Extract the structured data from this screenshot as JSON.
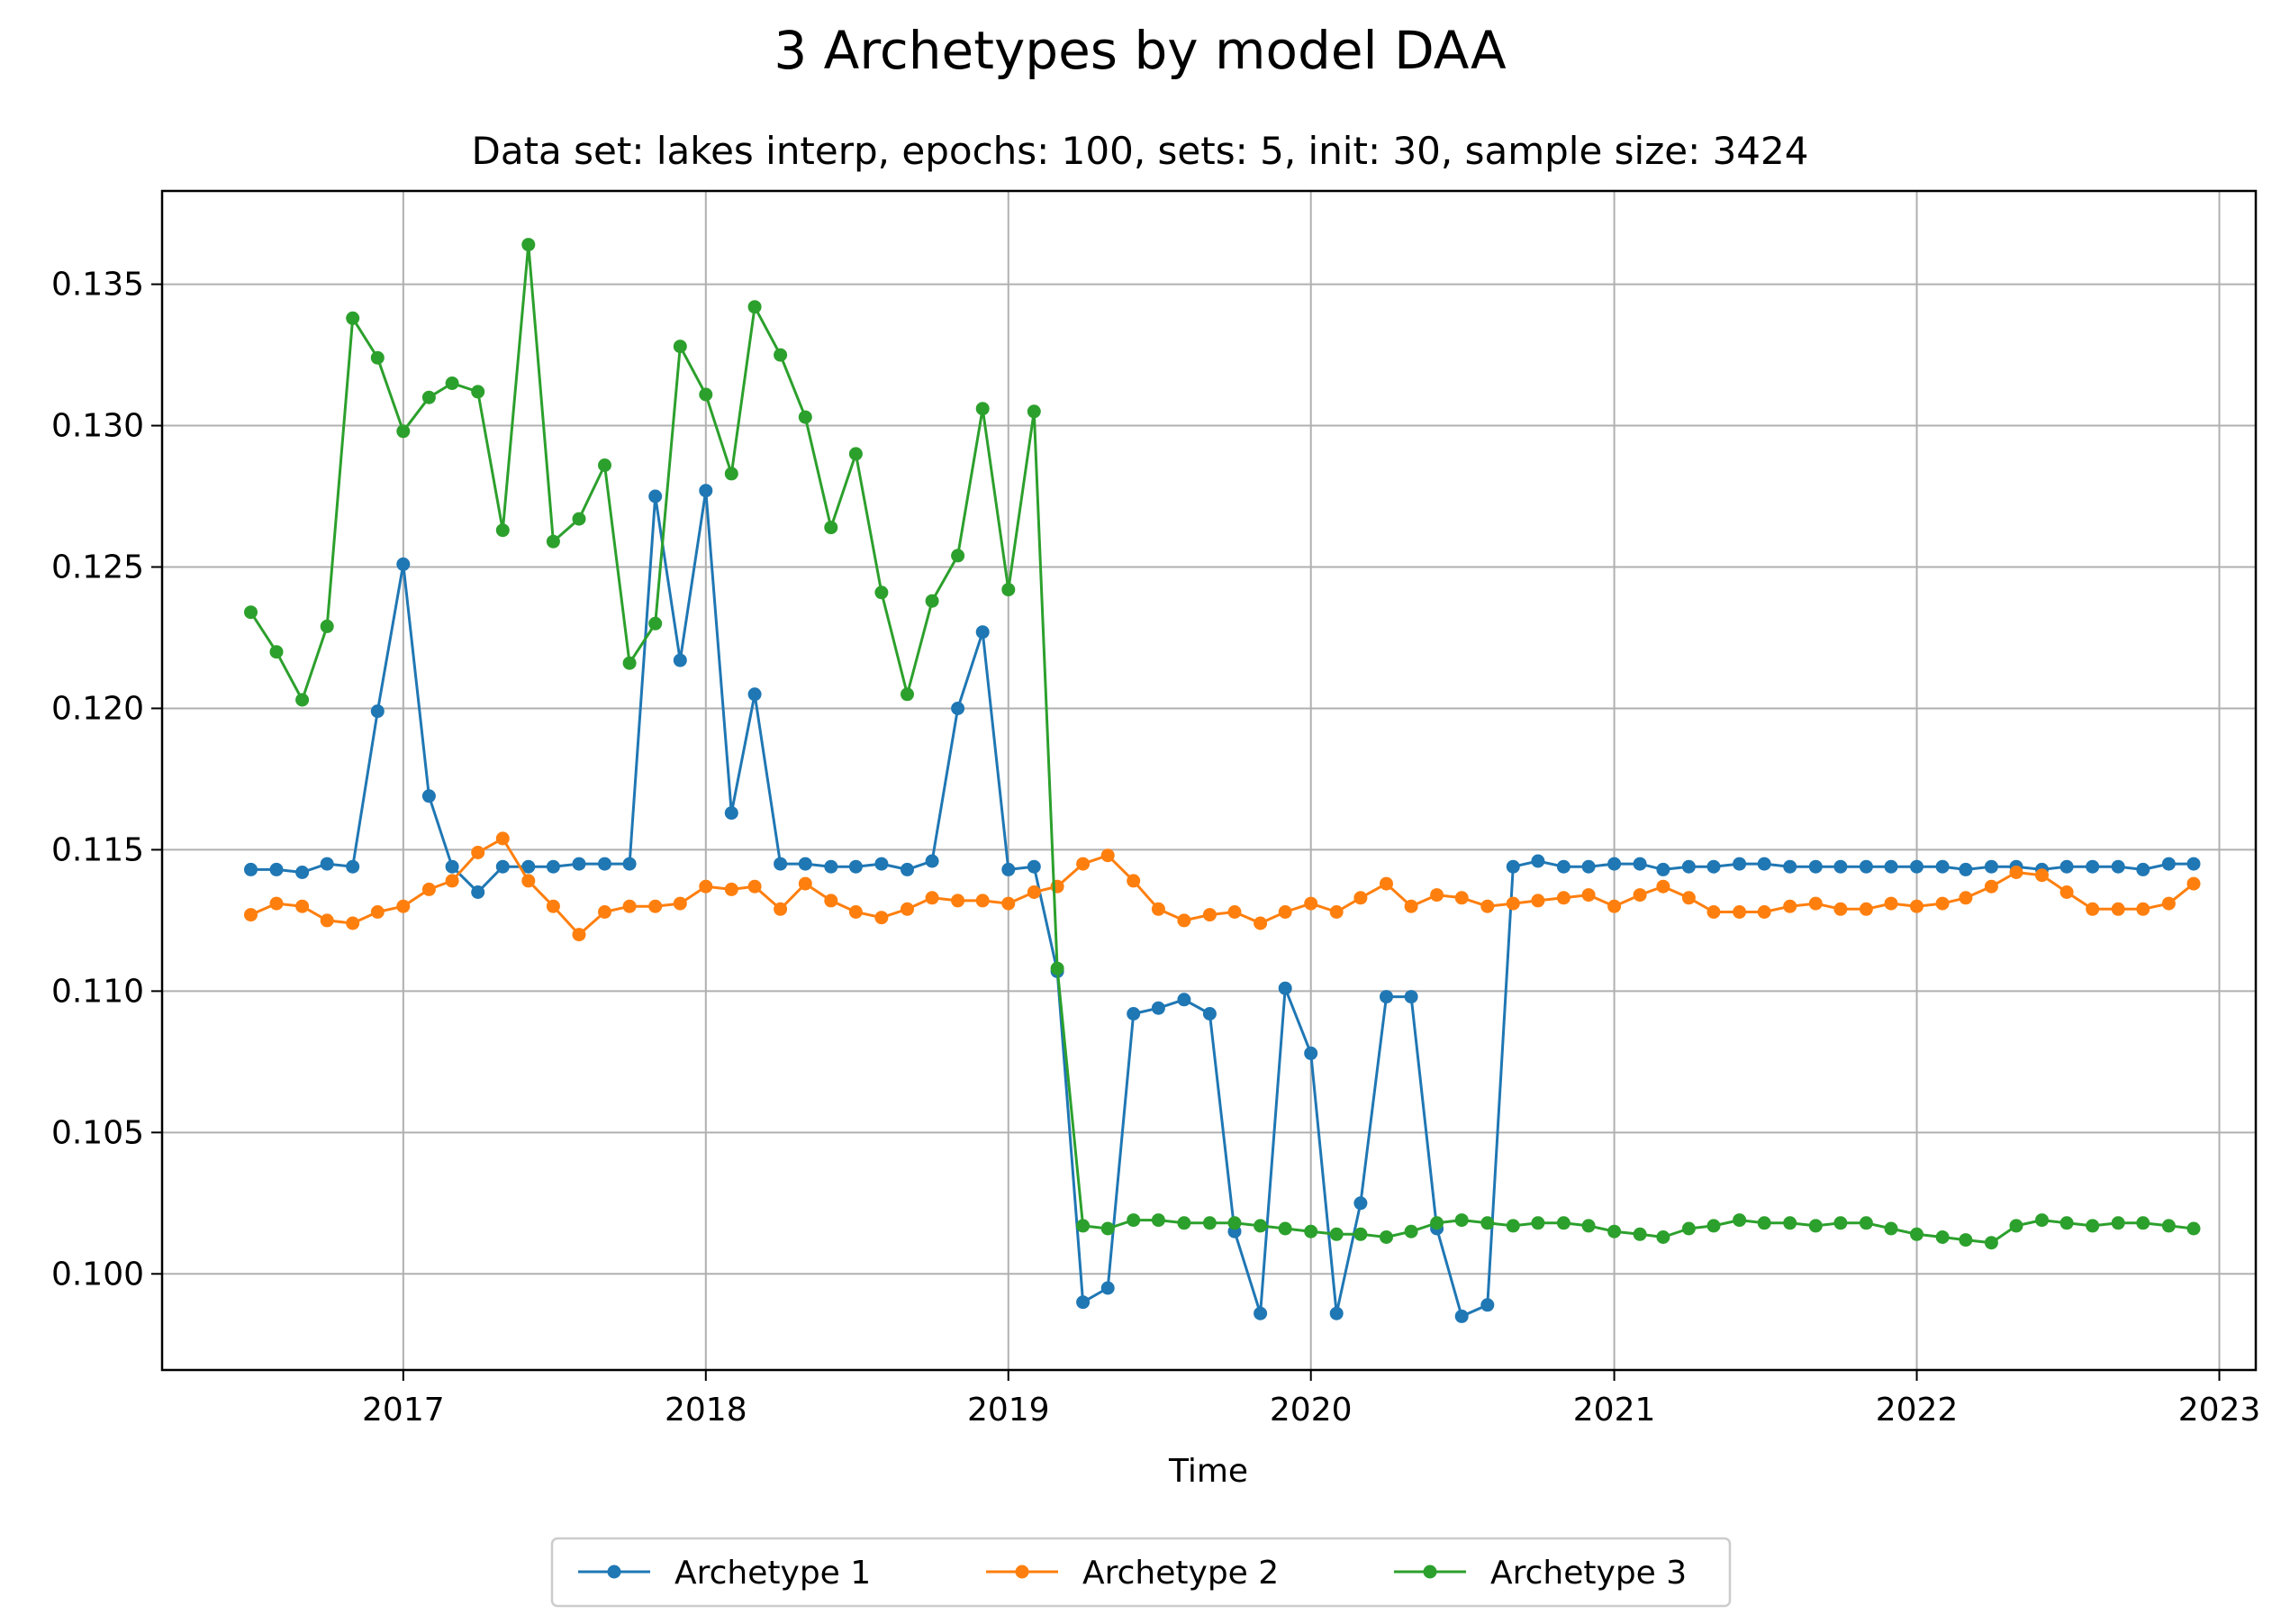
{
  "chart_data": {
    "type": "line",
    "title": "3 Archetypes by model DAA",
    "subtitle": "Data set: lakes interp, epochs: 100, sets: 5, init: 30, sample size: 3424",
    "xlabel": "Time",
    "ylabel": "",
    "xlim": [
      "2016-03-16",
      "2023-02-14"
    ],
    "ylim": [
      0.0966,
      0.1383
    ],
    "x_ticks": [
      "2017",
      "2018",
      "2019",
      "2020",
      "2021",
      "2022",
      "2023"
    ],
    "y_ticks": [
      "0.100",
      "0.105",
      "0.110",
      "0.115",
      "0.120",
      "0.125",
      "0.130",
      "0.135"
    ],
    "grid": true,
    "legend_position": "bottom-center",
    "x": [
      "2016-07",
      "2016-08",
      "2016-09",
      "2016-10",
      "2016-11",
      "2016-12",
      "2017-01",
      "2017-02",
      "2017-03",
      "2017-04",
      "2017-05",
      "2017-06",
      "2017-07",
      "2017-08",
      "2017-09",
      "2017-10",
      "2017-11",
      "2017-12",
      "2018-01",
      "2018-02",
      "2018-03",
      "2018-04",
      "2018-05",
      "2018-06",
      "2018-07",
      "2018-08",
      "2018-09",
      "2018-10",
      "2018-11",
      "2018-12",
      "2019-01",
      "2019-02",
      "2019-03",
      "2019-04",
      "2019-05",
      "2019-06",
      "2019-07",
      "2019-08",
      "2019-09",
      "2019-10",
      "2019-11",
      "2019-12",
      "2020-01",
      "2020-02",
      "2020-03",
      "2020-04",
      "2020-05",
      "2020-06",
      "2020-07",
      "2020-08",
      "2020-09",
      "2020-10",
      "2020-11",
      "2020-12",
      "2021-01",
      "2021-02",
      "2021-03",
      "2021-04",
      "2021-05",
      "2021-06",
      "2021-07",
      "2021-08",
      "2021-09",
      "2021-10",
      "2021-11",
      "2021-12",
      "2022-01",
      "2022-02",
      "2022-03",
      "2022-04",
      "2022-05",
      "2022-06",
      "2022-07",
      "2022-08",
      "2022-09",
      "2022-10",
      "2022-11",
      "2022-12"
    ],
    "series": [
      {
        "name": "Archetype 1",
        "color": "#1f77b4",
        "values": [
          0.1143,
          0.1143,
          0.1142,
          0.1145,
          0.1144,
          0.1199,
          0.1251,
          0.1169,
          0.1144,
          0.1135,
          0.1144,
          0.1144,
          0.1144,
          0.1145,
          0.1145,
          0.1145,
          0.1275,
          0.1217,
          0.1277,
          0.1163,
          0.1205,
          0.1145,
          0.1145,
          0.1144,
          0.1144,
          0.1145,
          0.1143,
          0.1146,
          0.12,
          0.1227,
          0.1143,
          0.1144,
          0.1107,
          0.099,
          0.0995,
          0.1092,
          0.1094,
          0.1097,
          0.1092,
          0.1015,
          0.0986,
          0.1101,
          0.1078,
          0.0986,
          0.1025,
          0.1098,
          0.1098,
          0.1016,
          0.0985,
          0.0989,
          0.1144,
          0.1146,
          0.1144,
          0.1144,
          0.1145,
          0.1145,
          0.1143,
          0.1144,
          0.1144,
          0.1145,
          0.1145,
          0.1144,
          0.1144,
          0.1144,
          0.1144,
          0.1144,
          0.1144,
          0.1144,
          0.1143,
          0.1144,
          0.1144,
          0.1143,
          0.1144,
          0.1144,
          0.1144,
          0.1143,
          0.1145,
          0.1145
        ]
      },
      {
        "name": "Archetype 2",
        "color": "#ff7f0e",
        "values": [
          0.1127,
          0.1131,
          0.113,
          0.1125,
          0.1124,
          0.1128,
          0.113,
          0.1136,
          0.1139,
          0.1149,
          0.1154,
          0.1139,
          0.113,
          0.112,
          0.1128,
          0.113,
          0.113,
          0.1131,
          0.1137,
          0.1136,
          0.1137,
          0.1129,
          0.1138,
          0.1132,
          0.1128,
          0.1126,
          0.1129,
          0.1133,
          0.1132,
          0.1132,
          0.1131,
          0.1135,
          0.1137,
          0.1145,
          0.1148,
          0.1139,
          0.1129,
          0.1125,
          0.1127,
          0.1128,
          0.1124,
          0.1128,
          0.1131,
          0.1128,
          0.1133,
          0.1138,
          0.113,
          0.1134,
          0.1133,
          0.113,
          0.1131,
          0.1132,
          0.1133,
          0.1134,
          0.113,
          0.1134,
          0.1137,
          0.1133,
          0.1128,
          0.1128,
          0.1128,
          0.113,
          0.1131,
          0.1129,
          0.1129,
          0.1131,
          0.113,
          0.1131,
          0.1133,
          0.1137,
          0.1142,
          0.1141,
          0.1135,
          0.1129,
          0.1129,
          0.1129,
          0.1131,
          0.1138
        ]
      },
      {
        "name": "Archetype 3",
        "color": "#2ca02c",
        "values": [
          0.1234,
          0.122,
          0.1203,
          0.1229,
          0.1338,
          0.1324,
          0.1298,
          0.131,
          0.1315,
          0.1312,
          0.1263,
          0.1364,
          0.1259,
          0.1267,
          0.1286,
          0.1216,
          0.123,
          0.1328,
          0.1311,
          0.1283,
          0.1342,
          0.1325,
          0.1303,
          0.1264,
          0.129,
          0.1241,
          0.1205,
          0.1238,
          0.1254,
          0.1306,
          0.1242,
          0.1305,
          0.1108,
          0.1017,
          0.1016,
          0.1019,
          0.1019,
          0.1018,
          0.1018,
          0.1018,
          0.1017,
          0.1016,
          0.1015,
          0.1014,
          0.1014,
          0.1013,
          0.1015,
          0.1018,
          0.1019,
          0.1018,
          0.1017,
          0.1018,
          0.1018,
          0.1017,
          0.1015,
          0.1014,
          0.1013,
          0.1016,
          0.1017,
          0.1019,
          0.1018,
          0.1018,
          0.1017,
          0.1018,
          0.1018,
          0.1016,
          0.1014,
          0.1013,
          0.1012,
          0.1011,
          0.1017,
          0.1019,
          0.1018,
          0.1017,
          0.1018,
          0.1018,
          0.1017,
          0.1016
        ]
      }
    ]
  }
}
